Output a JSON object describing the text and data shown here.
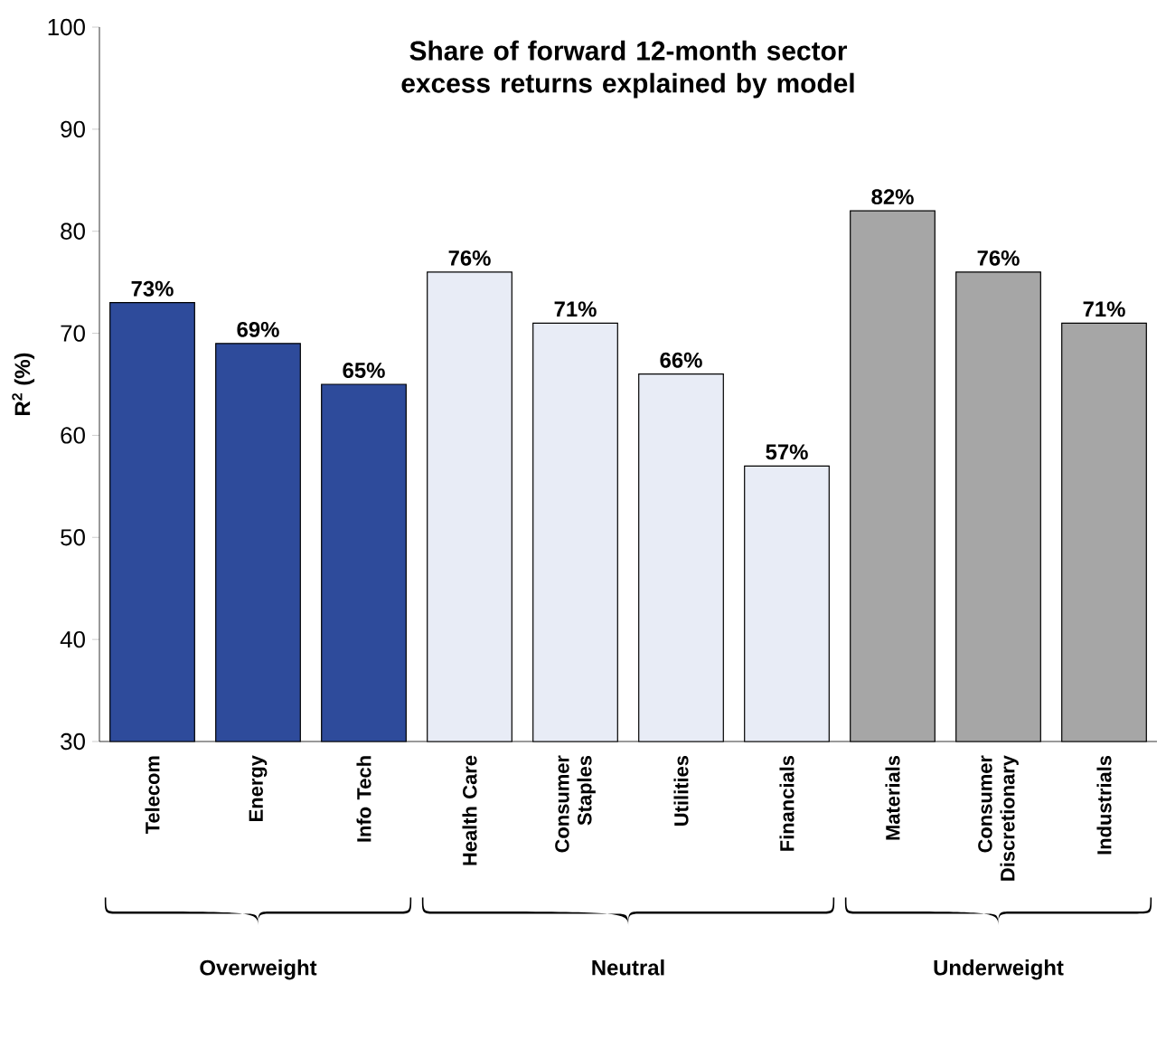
{
  "chart_data": {
    "type": "bar",
    "title": "Share of forward 12-month sector excess returns explained by model",
    "ylabel": "R$^{2}$ (%)",
    "categories": [
      "Telecom",
      "Energy",
      "Info Tech",
      "Health Care",
      "Consumer Staples",
      "Utilities",
      "Financials",
      "Materials",
      "Consumer Discretionary",
      "Industrials"
    ],
    "values": [
      73,
      69,
      65,
      76,
      71,
      66,
      57,
      82,
      76,
      71
    ],
    "value_labels": [
      "73%",
      "69%",
      "65%",
      "76%",
      "71%",
      "66%",
      "57%",
      "82%",
      "76%",
      "71%"
    ],
    "colors": [
      "#2e4b9b",
      "#2e4b9b",
      "#2e4b9b",
      "#e8ecf6",
      "#e8ecf6",
      "#e8ecf6",
      "#e8ecf6",
      "#a6a6a6",
      "#a6a6a6",
      "#a6a6a6"
    ],
    "ylim": [
      30,
      100
    ],
    "yticks": [
      30,
      40,
      50,
      60,
      70,
      80,
      90,
      100
    ],
    "annotations": [
      "Overweight",
      "Neutral",
      "Underweight"
    ]
  }
}
